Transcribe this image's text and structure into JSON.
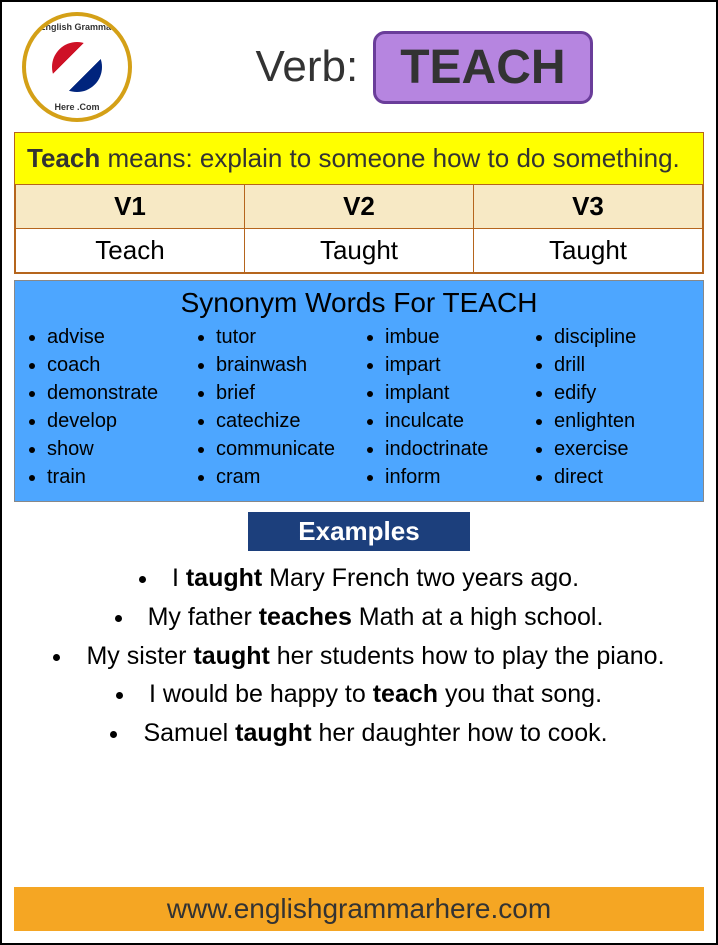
{
  "logo": {
    "text_top": "English Grammar",
    "text_bottom": "Here .Com",
    "border_color": "#d4a017"
  },
  "header": {
    "label_prefix": "Verb:",
    "verb": "TEACH",
    "verb_box_bg": "#b685e0",
    "verb_box_border": "#6a3d9a"
  },
  "definition": {
    "bold_word": "Teach",
    "text_rest": " means: explain to someone how to do something.",
    "bg": "#ffff00",
    "border": "#b5651d"
  },
  "verb_forms": {
    "headers": [
      "V1",
      "V2",
      "V3"
    ],
    "values": [
      "Teach",
      "Taught",
      "Taught"
    ],
    "header_bg": "#f7e9c5",
    "border": "#b5651d"
  },
  "synonyms": {
    "title": "Synonym Words For TEACH",
    "bg": "#4da6ff",
    "columns": [
      [
        "advise",
        "coach",
        "demonstrate",
        "develop",
        "show",
        "train"
      ],
      [
        "tutor",
        "brainwash",
        "brief",
        "catechize",
        "communicate",
        "cram"
      ],
      [
        "imbue",
        "impart",
        "implant",
        "inculcate",
        "indoctrinate",
        "inform"
      ],
      [
        "discipline",
        "drill",
        "edify",
        "enlighten",
        "exercise",
        "direct"
      ]
    ]
  },
  "examples": {
    "label": "Examples",
    "label_bg": "#1c3f7c",
    "items": [
      {
        "pre": "I ",
        "bold": "taught",
        "post": " Mary French two years ago."
      },
      {
        "pre": "My father ",
        "bold": "teaches",
        "post": " Math at a high school."
      },
      {
        "pre": "My sister ",
        "bold": "taught",
        "post": " her students how to play the piano."
      },
      {
        "pre": "I would be happy to ",
        "bold": "teach",
        "post": " you that song."
      },
      {
        "pre": "Samuel ",
        "bold": "taught",
        "post": " her daughter how to cook."
      }
    ]
  },
  "footer": {
    "url": "www.englishgrammarhere.com",
    "bg": "#f5a623"
  }
}
